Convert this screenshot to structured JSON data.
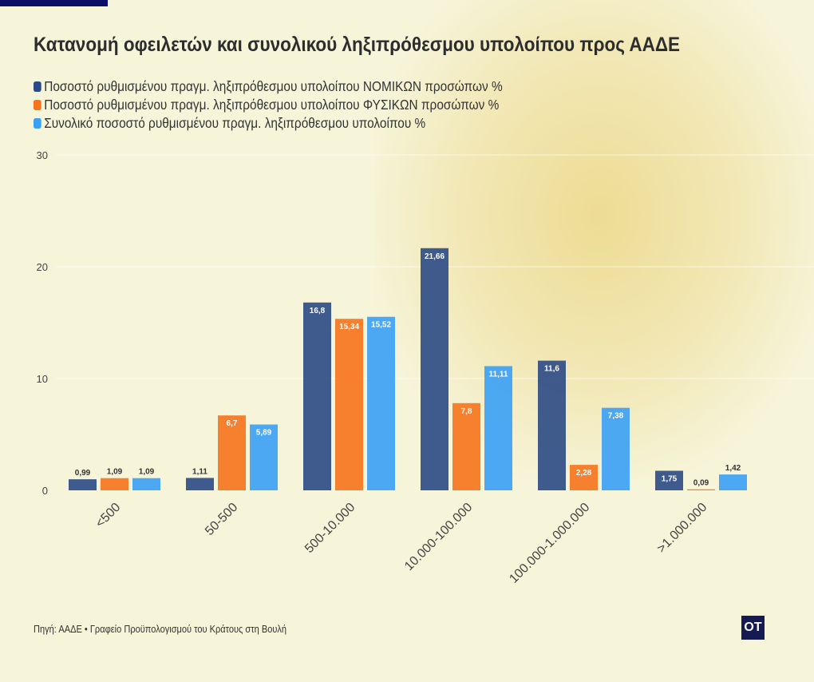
{
  "chart_data": {
    "type": "bar",
    "title": "Κατανομή οφειλετών και συνολικού ληξιπρόθεσμου υπολοίπου προς ΑΑΔΕ",
    "categories": [
      "<500",
      "50-500",
      "500-10.000",
      "10.000-100.000",
      "100.000-1.000.000",
      ">1.000.000"
    ],
    "series": [
      {
        "name": "Ποσοστό ρυθμισμένου πραγμ. ληξιπρόθεσμου υπολοίπου ΝΟΜΙΚΩΝ προσώπων %",
        "color": "#2b4a85",
        "values": [
          0.99,
          1.11,
          16.8,
          21.66,
          11.6,
          1.75
        ],
        "labels": [
          "0,99",
          "1,11",
          "16,8",
          "21,66",
          "11,6",
          "1,75"
        ]
      },
      {
        "name": "Ποσοστό ρυθμισμένου πραγμ. ληξιπρόθεσμου υπολοίπου ΦΥΣΙΚΩΝ προσώπων %",
        "color": "#f7731c",
        "values": [
          1.09,
          6.7,
          15.34,
          7.8,
          2.28,
          0.09
        ],
        "labels": [
          "1,09",
          "6,7",
          "15,34",
          "7,8",
          "2,28",
          "0,09"
        ]
      },
      {
        "name": "Συνολικό ποσοστό ρυθμισμένου πραγμ. ληξιπρόθεσμου υπολοίπου %",
        "color": "#3aa0f5",
        "values": [
          1.09,
          5.89,
          15.52,
          11.11,
          7.38,
          1.42
        ],
        "labels": [
          "1,09",
          "5,89",
          "15,52",
          "11,11",
          "7,38",
          "1,42"
        ]
      }
    ],
    "yticks": [
      0,
      10,
      20,
      30
    ],
    "ylim": [
      0,
      30
    ],
    "grid": true,
    "legend": "top-left"
  },
  "source": "Πηγή: ΑΑΔΕ • Γραφείο Προϋπολογισμού του Κράτους στη Βουλή",
  "logo": "OT"
}
